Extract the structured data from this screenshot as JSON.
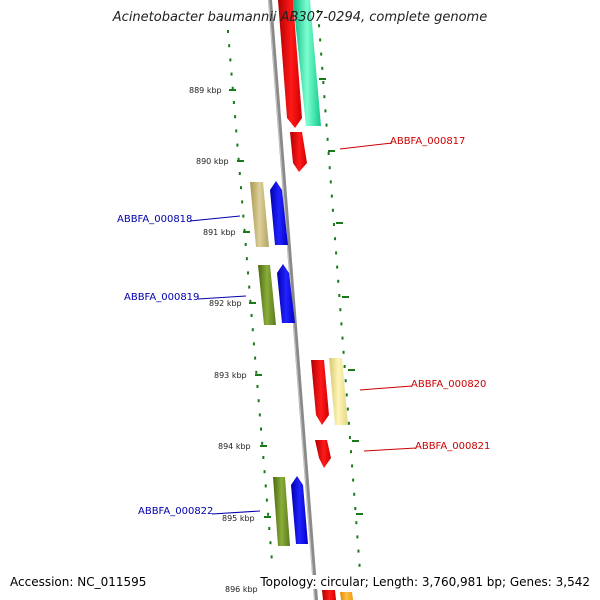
{
  "title": "Acinetobacter baumannii AB307-0294, complete genome",
  "footer": {
    "accession": "Accession: NC_011595",
    "summary": "Topology: circular; Length: 3,760,981 bp; Genes: 3,542"
  },
  "colors": {
    "backbone": "#8a8a8a",
    "tick": "#1a7a1a",
    "cds": "#ff0000",
    "gene_teal": "#33e0a8",
    "blue": "#0000ee",
    "olive": "#6b8c2a",
    "khaki": "#c8bb78",
    "pale_yellow": "#efe49a",
    "label_blue": "#0000aa",
    "label_red": "#cc0000",
    "orange": "#ffa500"
  },
  "ticks": [
    {
      "label": "889 kbp"
    },
    {
      "label": "890 kbp"
    },
    {
      "label": "891 kbp"
    },
    {
      "label": "892 kbp"
    },
    {
      "label": "893 kbp"
    },
    {
      "label": "894 kbp"
    },
    {
      "label": "895 kbp"
    },
    {
      "label": "896 kbp"
    }
  ],
  "gene_labels": [
    {
      "text": "ABBFA_000817",
      "strand": "forward"
    },
    {
      "text": "ABBFA_000818",
      "strand": "reverse"
    },
    {
      "text": "ABBFA_000819",
      "strand": "reverse"
    },
    {
      "text": "ABBFA_000820",
      "strand": "forward"
    },
    {
      "text": "ABBFA_000821",
      "strand": "forward"
    },
    {
      "text": "ABBFA_000822",
      "strand": "reverse"
    }
  ]
}
